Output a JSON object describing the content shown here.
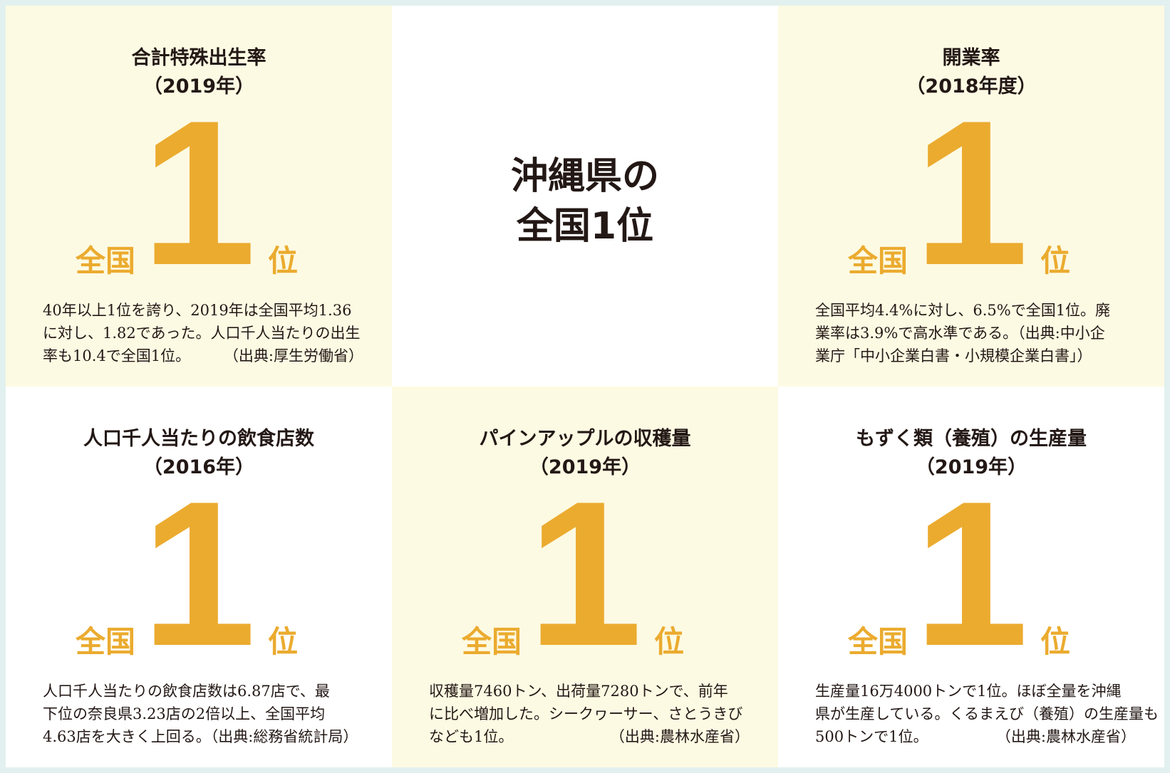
{
  "center": {
    "lines": [
      "沖縄県の",
      "全国1位"
    ]
  },
  "cards": [
    {
      "title": "合計特殊出生率",
      "year": "（2019年）",
      "prefix": "全国",
      "rank": "1",
      "suffix": "位",
      "lines": [
        "40年以上1位を誇り、2019年は全国平均1.36",
        "に対し、1.82であった。人口千人当たりの出生",
        "率も10.4で全国1位。"
      ],
      "source": "（出典:厚生労働省）"
    },
    {
      "title": "開業率",
      "year": "（2018年度）",
      "prefix": "全国",
      "rank": "1",
      "suffix": "位",
      "lines": [
        "全国平均4.4%に対し、6.5%で全国1位。廃",
        "業率は3.9%で高水準である。（出典:中小企",
        "業庁「中小企業白書・小規模企業白書」）"
      ]
    },
    {
      "title": "人口千人当たりの飲食店数",
      "year": "（2016年）",
      "prefix": "全国",
      "rank": "1",
      "suffix": "位",
      "lines": [
        "人口千人当たりの飲食店数は6.87店で、最",
        "下位の奈良県3.23店の2倍以上、全国平均",
        "4.63店を大きく上回る。（出典:総務省統計局）"
      ]
    },
    {
      "title": "パインアップルの収穫量",
      "year": "（2019年）",
      "prefix": "全国",
      "rank": "1",
      "suffix": "位",
      "lines": [
        "収穫量7460トン、出荷量7280トンで、前年",
        "に比べ増加した。シークヮーサー、さとうきび",
        "なども1位。"
      ],
      "source": "（出典:農林水産省）"
    },
    {
      "title": "もずく類（養殖）の生産量",
      "year": "（2019年）",
      "prefix": "全国",
      "rank": "1",
      "suffix": "位",
      "lines": [
        "生産量16万4000トンで1位。ほぼ全量を沖縄",
        "県が生産している。くるまえび（養殖）の生産量も",
        "500トンで1位。"
      ],
      "source": "（出典:農林水産省）"
    }
  ]
}
